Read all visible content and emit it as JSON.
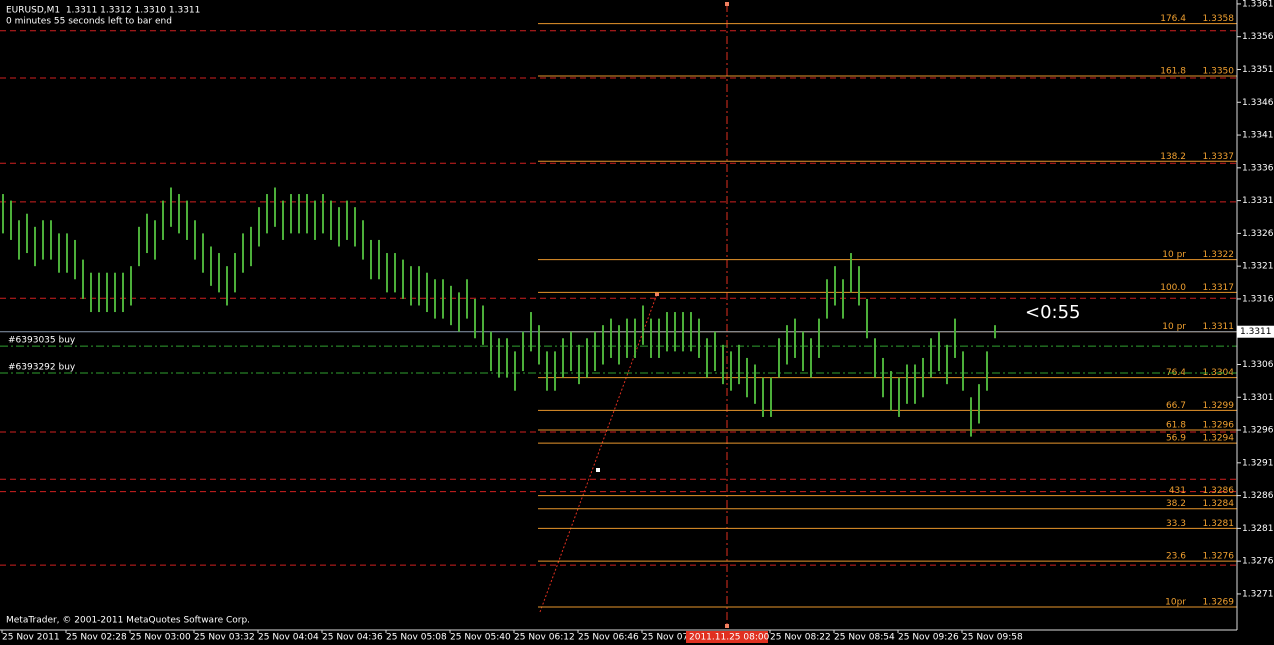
{
  "chart_data": {
    "type": "range-bar",
    "header": "EURUSD,M1  1.3311 1.3312 1.3310 1.3311",
    "subheader": "0 minutes 55 seconds left to bar end",
    "footer": "MetaTrader, © 2001-2011 MetaQuotes Software Corp.",
    "countdown": "<0:55",
    "color": "#4caf3a",
    "ylim": [
      1.32655,
      1.33616
    ],
    "yticks": [
      1.3361,
      1.3356,
      1.3351,
      1.3346,
      1.3341,
      1.3336,
      1.3331,
      1.3326,
      1.3321,
      1.3316,
      1.3311,
      1.3306,
      1.3301,
      1.3296,
      1.3291,
      1.3286,
      1.3281,
      1.3276,
      1.3271
    ],
    "current_price": 1.3311,
    "time_labels": [
      "25 Nov 2011",
      "25 Nov 02:28",
      "25 Nov 03:00",
      "25 Nov 03:32",
      "25 Nov 04:04",
      "25 Nov 04:36",
      "25 Nov 05:08",
      "25 Nov 05:40",
      "25 Nov 06:12",
      "25 Nov 06:46",
      "25 Nov 07",
      "25 Nov 08:22",
      "25 Nov 08:54",
      "25 Nov 09:26",
      "25 Nov 09:58"
    ],
    "cursor_time": "2011.11.25 08:00",
    "high": [
      1.3332,
      1.3331,
      1.3328,
      1.3329,
      1.3327,
      1.3328,
      1.3328,
      1.3326,
      1.3326,
      1.3325,
      1.3322,
      1.332,
      1.332,
      1.332,
      1.332,
      1.332,
      1.3321,
      1.3327,
      1.3329,
      1.3328,
      1.3331,
      1.3333,
      1.3332,
      1.3331,
      1.3328,
      1.3326,
      1.3324,
      1.3323,
      1.3321,
      1.3323,
      1.3326,
      1.3327,
      1.333,
      1.3332,
      1.3333,
      1.3331,
      1.3332,
      1.3332,
      1.3332,
      1.3331,
      1.3332,
      1.3331,
      1.333,
      1.3331,
      1.333,
      1.3328,
      1.3325,
      1.3325,
      1.3323,
      1.3323,
      1.3322,
      1.3321,
      1.3321,
      1.332,
      1.3319,
      1.3319,
      1.3318,
      1.3317,
      1.3319,
      1.3316,
      1.3315,
      1.3311,
      1.331,
      1.331,
      1.3308,
      1.3311,
      1.3314,
      1.3312,
      1.3308,
      1.3308,
      1.331,
      1.3311,
      1.3309,
      1.331,
      1.3311,
      1.3312,
      1.3313,
      1.3312,
      1.3313,
      1.3313,
      1.3315,
      1.3313,
      1.3313,
      1.3314,
      1.3314,
      1.3314,
      1.3314,
      1.3313,
      1.331,
      1.3311,
      1.3309,
      1.3308,
      1.3309,
      1.3307,
      1.3306,
      1.3304,
      1.3304,
      1.331,
      1.3312,
      1.3313,
      1.3311,
      1.331,
      1.3313,
      1.3319,
      1.3321,
      1.3319,
      1.3323,
      1.3321,
      1.3316,
      1.331,
      1.3307,
      1.3305,
      1.3304,
      1.3306,
      1.3306,
      1.3307,
      1.331,
      1.3311,
      1.3309,
      1.3313,
      1.3308,
      1.3301,
      1.3303,
      1.3308,
      1.3312
    ],
    "low": [
      1.3326,
      1.3325,
      1.3322,
      1.3323,
      1.3321,
      1.3322,
      1.3322,
      1.332,
      1.332,
      1.3319,
      1.3316,
      1.3314,
      1.3314,
      1.3314,
      1.3314,
      1.3314,
      1.3315,
      1.3321,
      1.3323,
      1.3322,
      1.3325,
      1.3327,
      1.3326,
      1.3325,
      1.3322,
      1.332,
      1.3318,
      1.3317,
      1.3315,
      1.3317,
      1.332,
      1.3321,
      1.3324,
      1.3326,
      1.3327,
      1.3325,
      1.3326,
      1.3326,
      1.3326,
      1.3325,
      1.3326,
      1.3325,
      1.3324,
      1.3325,
      1.3324,
      1.3322,
      1.3319,
      1.3319,
      1.3317,
      1.3317,
      1.3316,
      1.3315,
      1.3315,
      1.3314,
      1.3313,
      1.3313,
      1.3312,
      1.3311,
      1.3313,
      1.331,
      1.3309,
      1.3305,
      1.3304,
      1.3304,
      1.3302,
      1.3305,
      1.3308,
      1.3306,
      1.3302,
      1.3302,
      1.3304,
      1.3305,
      1.3303,
      1.3304,
      1.3305,
      1.3306,
      1.3307,
      1.3306,
      1.3307,
      1.3307,
      1.3309,
      1.3307,
      1.3307,
      1.3308,
      1.3308,
      1.3308,
      1.3308,
      1.3307,
      1.3304,
      1.3305,
      1.3303,
      1.3302,
      1.3303,
      1.3301,
      1.33,
      1.3298,
      1.3298,
      1.3304,
      1.3306,
      1.3307,
      1.3305,
      1.3304,
      1.3307,
      1.3313,
      1.3315,
      1.3313,
      1.3317,
      1.3315,
      1.331,
      1.3304,
      1.3301,
      1.3299,
      1.3298,
      1.33,
      1.33,
      1.3301,
      1.3304,
      1.3305,
      1.3303,
      1.3307,
      1.3302,
      1.3295,
      1.3297,
      1.3302,
      1.331
    ],
    "levels": [
      1.33569,
      1.33497,
      1.33367,
      1.33308,
      1.33161,
      1.32957,
      1.32885,
      1.32866,
      1.32754
    ],
    "orders": [
      {
        "label": "#6393035 buy",
        "price": 1.33088
      },
      {
        "label": "#6393292 buy",
        "price": 1.33047
      }
    ],
    "fibo": [
      {
        "ratio": "176.4",
        "price": {
          "value": 1.3358,
          "label": "1.3358"
        }
      },
      {
        "ratio": "161.8",
        "price": {
          "value": 1.335,
          "label": "1.3350"
        }
      },
      {
        "ratio": "138.2",
        "price": {
          "value": 1.3337,
          "label": "1.3337"
        }
      },
      {
        "ratio": "10 pr",
        "price": {
          "value": 1.3322,
          "label": "1.3322"
        }
      },
      {
        "ratio": "100.0",
        "price": {
          "value": 1.3317,
          "label": "1.3317"
        }
      },
      {
        "ratio": "10 pr",
        "price": {
          "value": 1.3311,
          "label": "1.3311"
        }
      },
      {
        "ratio": "76.4",
        "price": {
          "value": 1.3304,
          "label": "1.3304"
        }
      },
      {
        "ratio": "66.7",
        "price": {
          "value": 1.3299,
          "label": "1.3299"
        }
      },
      {
        "ratio": "61.8",
        "price": {
          "value": 1.3296,
          "label": "1.3296"
        }
      },
      {
        "ratio": "56.9",
        "price": {
          "value": 1.3294,
          "label": "1.3294"
        }
      },
      {
        "ratio": "431",
        "price": {
          "value": 1.3286,
          "label": "1.3286"
        }
      },
      {
        "ratio": "38.2",
        "price": {
          "value": 1.3284,
          "label": "1.3284"
        }
      },
      {
        "ratio": "33.3",
        "price": {
          "value": 1.3281,
          "label": "1.3281"
        }
      },
      {
        "ratio": "23.6",
        "price": {
          "value": 1.3276,
          "label": "1.3276"
        }
      },
      {
        "ratio": "10pr",
        "price": {
          "value": 1.3269,
          "label": "1.3269"
        }
      }
    ]
  }
}
